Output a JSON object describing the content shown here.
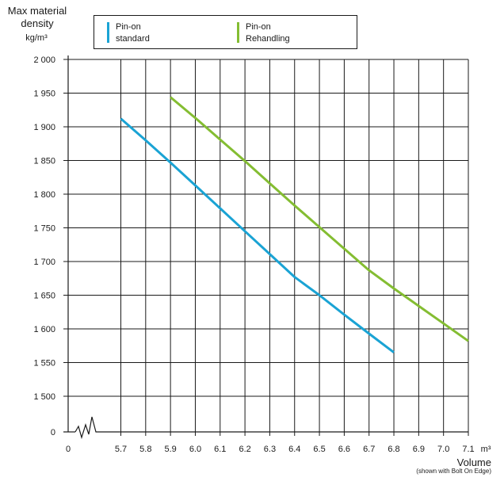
{
  "chart_data": {
    "type": "line",
    "ylabel": "Max material density",
    "yunit": "kg/m³",
    "xlabel": "Volume",
    "xlabel_note": "(shown with Bolt On Edge)",
    "xunit": "m³",
    "x_ticks": [
      "0",
      "5.7",
      "5.8",
      "5.9",
      "6.0",
      "6.1",
      "6.2",
      "6.3",
      "6.4",
      "6.5",
      "6.6",
      "6.7",
      "6.8",
      "6.9",
      "7.0",
      "7.1"
    ],
    "y_ticks": [
      "0",
      "1500",
      "1550",
      "1600",
      "1650",
      "1700",
      "1750",
      "1800",
      "1850",
      "1900",
      "1950",
      "2 000"
    ],
    "y_tick_labels": [
      "0",
      "1 500",
      "1 550",
      "1 600",
      "1 650",
      "1 700",
      "1 750",
      "1 800",
      "1 850",
      "1 900",
      "1 950",
      "2 000"
    ],
    "xlim": [
      5.7,
      7.1
    ],
    "ylim": [
      1500,
      2000
    ],
    "axis_breaks": true,
    "grid": true,
    "legend_position": "top",
    "series": [
      {
        "name": "Pin-on standard",
        "color": "#1aa3d4",
        "x": [
          5.7,
          5.8,
          5.9,
          6.0,
          6.1,
          6.2,
          6.3,
          6.4,
          6.5,
          6.6,
          6.7,
          6.8
        ],
        "y": [
          1912,
          1880,
          1847,
          1813,
          1779,
          1745,
          1711,
          1677,
          1650,
          1621,
          1593,
          1565
        ]
      },
      {
        "name": "Pin-on Rehandling",
        "color": "#84bd32",
        "x": [
          5.9,
          6.0,
          6.1,
          6.2,
          6.3,
          6.4,
          6.5,
          6.6,
          6.7,
          6.8,
          6.9,
          7.0,
          7.1
        ],
        "y": [
          1944,
          1913,
          1881,
          1849,
          1816,
          1783,
          1751,
          1719,
          1687,
          1660,
          1634,
          1608,
          1582
        ]
      }
    ]
  },
  "legend": {
    "items": [
      {
        "line1": "Pin-on",
        "line2": "standard",
        "color": "#1aa3d4"
      },
      {
        "line1": "Pin-on",
        "line2": "Rehandling",
        "color": "#84bd32"
      }
    ]
  }
}
